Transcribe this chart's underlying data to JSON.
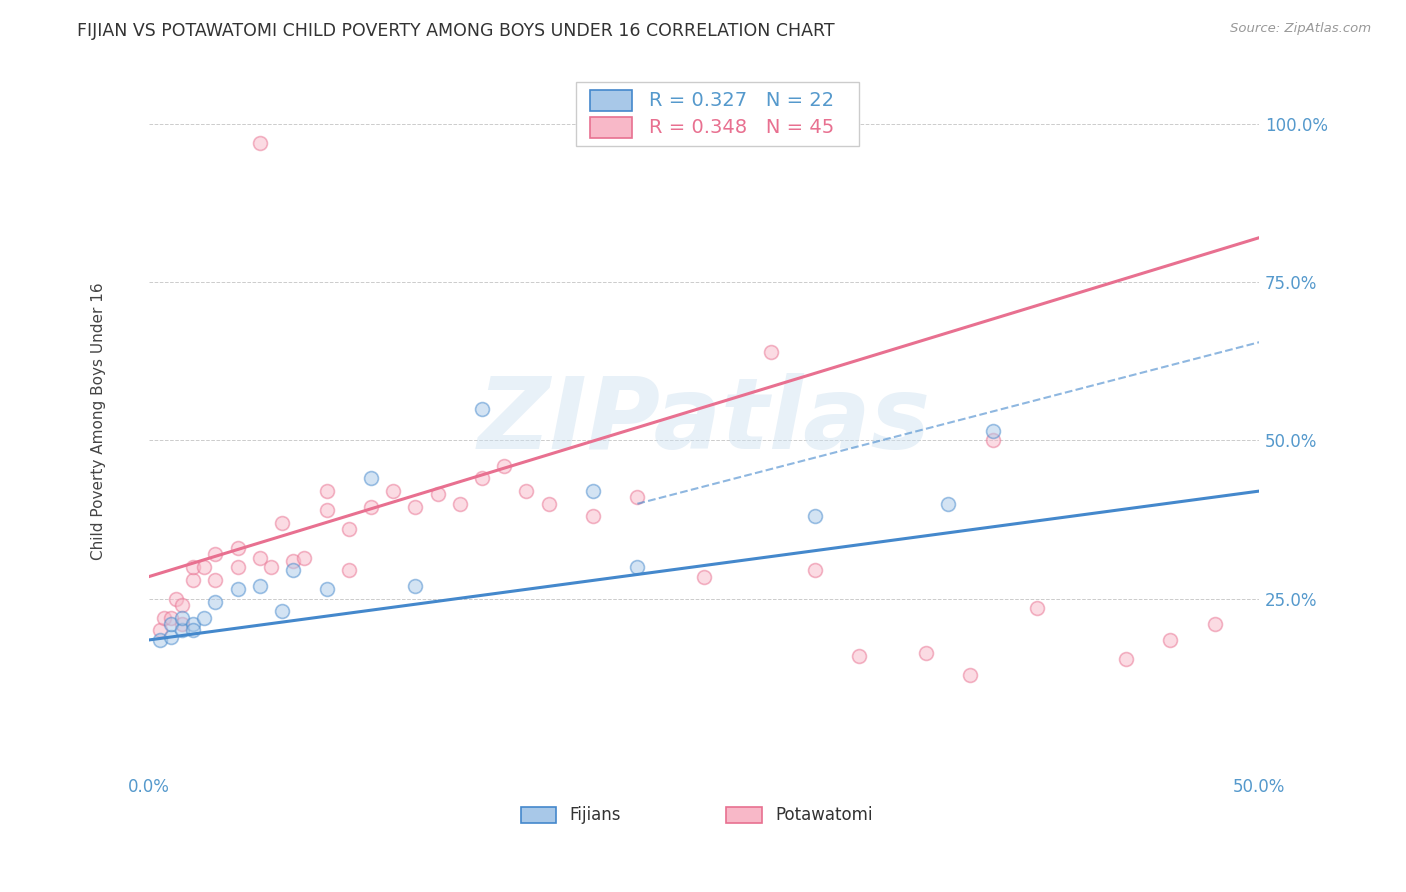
{
  "title": "FIJIAN VS POTAWATOMI CHILD POVERTY AMONG BOYS UNDER 16 CORRELATION CHART",
  "source": "Source: ZipAtlas.com",
  "ylabel": "Child Poverty Among Boys Under 16",
  "xlim": [
    0.0,
    0.5
  ],
  "ylim": [
    -0.02,
    1.08
  ],
  "ytick_labels_right": [
    "100.0%",
    "75.0%",
    "50.0%",
    "25.0%"
  ],
  "ytick_positions_right": [
    1.0,
    0.75,
    0.5,
    0.25
  ],
  "watermark": "ZIPatlas",
  "legend_labels": [
    "Fijians",
    "Potawatomi"
  ],
  "fijian_color": "#a8c8e8",
  "potawatomi_color": "#f8b8c8",
  "fijian_line_color": "#4488cc",
  "potawatomi_line_color": "#e87090",
  "fijian_scatter_x": [
    0.005,
    0.01,
    0.01,
    0.015,
    0.015,
    0.02,
    0.02,
    0.025,
    0.03,
    0.04,
    0.05,
    0.06,
    0.065,
    0.08,
    0.1,
    0.12,
    0.15,
    0.2,
    0.22,
    0.3,
    0.36,
    0.38
  ],
  "fijian_scatter_y": [
    0.185,
    0.19,
    0.21,
    0.2,
    0.22,
    0.21,
    0.2,
    0.22,
    0.245,
    0.265,
    0.27,
    0.23,
    0.295,
    0.265,
    0.44,
    0.27,
    0.55,
    0.42,
    0.3,
    0.38,
    0.4,
    0.515
  ],
  "potawatomi_scatter_x": [
    0.005,
    0.007,
    0.01,
    0.012,
    0.015,
    0.015,
    0.02,
    0.02,
    0.025,
    0.03,
    0.03,
    0.04,
    0.04,
    0.05,
    0.055,
    0.06,
    0.065,
    0.07,
    0.08,
    0.08,
    0.09,
    0.09,
    0.1,
    0.11,
    0.12,
    0.13,
    0.14,
    0.15,
    0.16,
    0.17,
    0.18,
    0.2,
    0.22,
    0.25,
    0.28,
    0.3,
    0.32,
    0.35,
    0.37,
    0.38,
    0.4,
    0.44,
    0.46,
    0.48,
    0.05
  ],
  "potawatomi_scatter_y": [
    0.2,
    0.22,
    0.22,
    0.25,
    0.21,
    0.24,
    0.28,
    0.3,
    0.3,
    0.28,
    0.32,
    0.3,
    0.33,
    0.315,
    0.3,
    0.37,
    0.31,
    0.315,
    0.42,
    0.39,
    0.295,
    0.36,
    0.395,
    0.42,
    0.395,
    0.415,
    0.4,
    0.44,
    0.46,
    0.42,
    0.4,
    0.38,
    0.41,
    0.285,
    0.64,
    0.295,
    0.16,
    0.165,
    0.13,
    0.5,
    0.235,
    0.155,
    0.185,
    0.21,
    0.97
  ],
  "fijian_line_x": [
    0.0,
    0.5
  ],
  "fijian_line_y": [
    0.185,
    0.42
  ],
  "potawatomi_line_x": [
    0.0,
    0.5
  ],
  "potawatomi_line_y": [
    0.285,
    0.82
  ],
  "dashed_line_x": [
    0.22,
    0.5
  ],
  "dashed_line_y": [
    0.4,
    0.655
  ],
  "background_color": "#ffffff",
  "grid_color": "#cccccc",
  "title_fontsize": 12.5,
  "axis_label_fontsize": 11,
  "tick_fontsize": 12,
  "scatter_size": 100,
  "scatter_alpha": 0.5,
  "scatter_linewidth": 1.2,
  "legend_R1": "R = 0.327",
  "legend_N1": "N = 22",
  "legend_R2": "R = 0.348",
  "legend_N2": "N = 45"
}
